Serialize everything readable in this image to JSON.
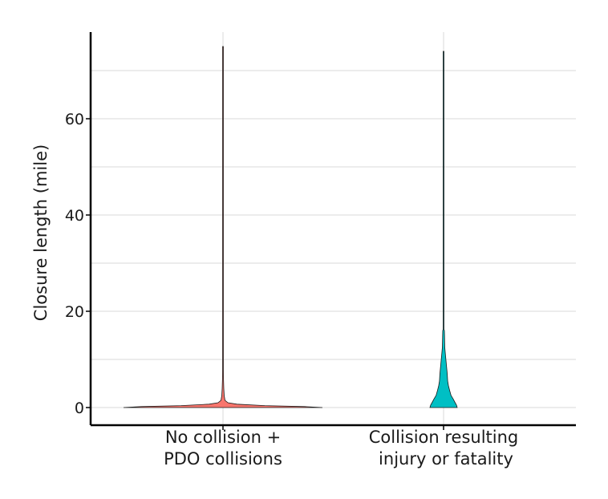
{
  "chart_data": {
    "type": "violin",
    "xlabel": "",
    "ylabel": "Closure length (mile)",
    "ylim": [
      -4,
      79
    ],
    "y_ticks": [
      0,
      20,
      40,
      60
    ],
    "grid": true,
    "legend": "none",
    "categories": [
      {
        "lines": [
          "No collision +",
          "PDO collisions"
        ]
      },
      {
        "lines": [
          "Collision resulting",
          "injury or fatality"
        ]
      }
    ],
    "series": [
      {
        "color": "#f8766d",
        "min": 0,
        "max": 75,
        "density_profile": [
          [
            0,
            1.0
          ],
          [
            0.2,
            0.82
          ],
          [
            0.4,
            0.42
          ],
          [
            0.7,
            0.14
          ],
          [
            1.0,
            0.05
          ],
          [
            1.5,
            0.02
          ],
          [
            2.5,
            0.012
          ],
          [
            4,
            0.008
          ],
          [
            6,
            0.005
          ],
          [
            8,
            0.004
          ],
          [
            10,
            0.003
          ],
          [
            12,
            0.002
          ],
          [
            15,
            0.0015
          ],
          [
            18,
            0.001
          ],
          [
            22,
            0.0008
          ],
          [
            30,
            0.0005
          ],
          [
            50,
            0.0004
          ],
          [
            75,
            0.0003
          ]
        ]
      },
      {
        "color": "#00bfc4",
        "min": 0,
        "max": 74,
        "density_profile": [
          [
            0,
            1.0
          ],
          [
            0.5,
            0.95
          ],
          [
            1.0,
            0.85
          ],
          [
            1.8,
            0.7
          ],
          [
            2.5,
            0.55
          ],
          [
            3.5,
            0.45
          ],
          [
            4.5,
            0.36
          ],
          [
            5.5,
            0.3
          ],
          [
            7,
            0.27
          ],
          [
            8.5,
            0.22
          ],
          [
            10,
            0.17
          ],
          [
            11.5,
            0.12
          ],
          [
            12.5,
            0.09
          ],
          [
            13.5,
            0.08
          ],
          [
            15,
            0.07
          ],
          [
            16,
            0.06
          ],
          [
            16.2,
            0.02
          ],
          [
            20,
            0.015
          ],
          [
            30,
            0.012
          ],
          [
            48,
            0.012
          ],
          [
            60,
            0.01
          ],
          [
            74,
            0.01
          ]
        ]
      }
    ]
  }
}
